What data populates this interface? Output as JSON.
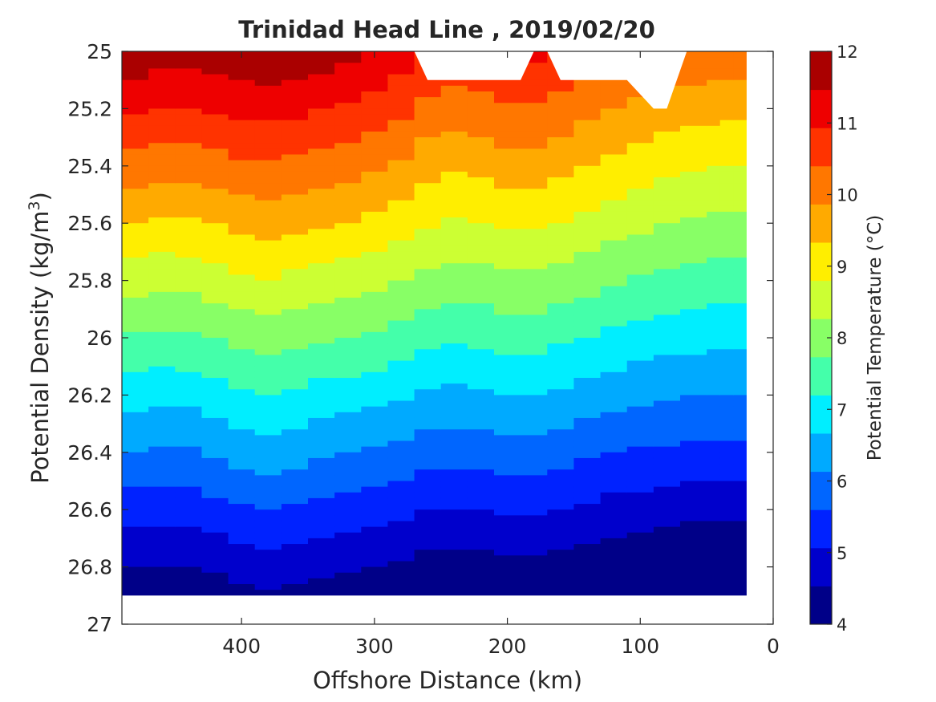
{
  "chart_data": {
    "type": "contour",
    "title": "Trinidad Head Line , 2019/02/20",
    "xlabel": "Offshore Distance (km)",
    "ylabel": "Potential Density (kg/m",
    "ylabel_sup": "3",
    "ylabel_close": ")",
    "xlim": [
      490,
      0
    ],
    "x_reversed": true,
    "ylim": [
      25,
      27
    ],
    "y_reversed": true,
    "x_ticks": [
      400,
      300,
      200,
      100,
      0
    ],
    "y_ticks": [
      25,
      25.2,
      25.4,
      25.6,
      25.8,
      26,
      26.2,
      26.4,
      26.6,
      26.8,
      27
    ],
    "colorbar": {
      "label": "Potential Temperature (°C)",
      "range": [
        4,
        12
      ],
      "ticks": [
        4,
        5,
        6,
        7,
        8,
        9,
        10,
        11,
        12
      ],
      "colors": [
        "#000088",
        "#0000cc",
        "#0022ff",
        "#0066ff",
        "#00aaff",
        "#00eeff",
        "#44ffaa",
        "#88ff66",
        "#ccff33",
        "#ffee00",
        "#ffaa00",
        "#ff7700",
        "#ff3300",
        "#ee0000",
        "#aa0000"
      ]
    },
    "x_grid": [
      490,
      470,
      450,
      430,
      410,
      390,
      370,
      350,
      330,
      310,
      290,
      270,
      250,
      230,
      210,
      190,
      170,
      150,
      130,
      110,
      90,
      70,
      50,
      40,
      30,
      20
    ],
    "y_grid": [
      25.0,
      25.1,
      25.2,
      25.3,
      25.4,
      25.5,
      25.6,
      25.7,
      25.8,
      25.9,
      26.0,
      26.1,
      26.2,
      26.3,
      26.4,
      26.5,
      26.6,
      26.7,
      26.8,
      26.9
    ],
    "shift": [
      [
        0.3,
        0.2,
        0.1,
        0.15,
        0.25,
        0.35,
        0.3,
        0.2,
        0.1,
        0.0,
        -0.2,
        -0.5,
        -0.8,
        -0.8,
        -0.6,
        -0.5,
        -0.6,
        -0.8,
        -1.0,
        -1.1,
        -1.3,
        -1.3,
        -1.4,
        -1.4,
        -1.45,
        -1.4
      ],
      [
        0.1,
        0.0,
        -0.05,
        0.05,
        0.15,
        0.3,
        0.25,
        0.15,
        0.1,
        0.0,
        -0.1,
        -0.3,
        -0.5,
        -0.5,
        -0.4,
        -0.3,
        -0.4,
        -0.5,
        -0.7,
        -0.8,
        -0.9,
        -1.0,
        -1.1,
        -1.1,
        -1.1,
        -1.1
      ],
      [
        0.0,
        -0.1,
        -0.15,
        0.0,
        0.1,
        0.3,
        0.3,
        0.1,
        0.05,
        -0.05,
        -0.1,
        -0.25,
        -0.35,
        -0.35,
        -0.3,
        -0.25,
        -0.3,
        -0.4,
        -0.5,
        -0.6,
        -0.65,
        -0.7,
        -0.75,
        -0.75,
        -0.75,
        -0.75
      ],
      [
        0.0,
        -0.05,
        -0.1,
        0.0,
        0.1,
        0.25,
        0.25,
        0.1,
        0.05,
        -0.05,
        -0.1,
        -0.2,
        -0.3,
        -0.3,
        -0.25,
        -0.2,
        -0.25,
        -0.3,
        -0.4,
        -0.45,
        -0.5,
        -0.55,
        -0.6,
        -0.6,
        -0.6,
        -0.6
      ]
    ],
    "blanks": [
      {
        "polygon": [
          [
            270,
            25.0
          ],
          [
            260,
            25.1
          ],
          [
            190,
            25.1
          ],
          [
            180,
            25.0
          ]
        ]
      },
      {
        "polygon": [
          [
            170,
            25.0
          ],
          [
            160,
            25.1
          ],
          [
            110,
            25.1
          ],
          [
            90,
            25.2
          ],
          [
            80,
            25.2
          ],
          [
            65,
            25.0
          ]
        ]
      },
      {
        "polygon": [
          [
            30,
            26.3
          ],
          [
            30,
            26.9
          ],
          [
            40,
            26.9
          ],
          [
            30,
            26.9
          ]
        ]
      }
    ]
  }
}
